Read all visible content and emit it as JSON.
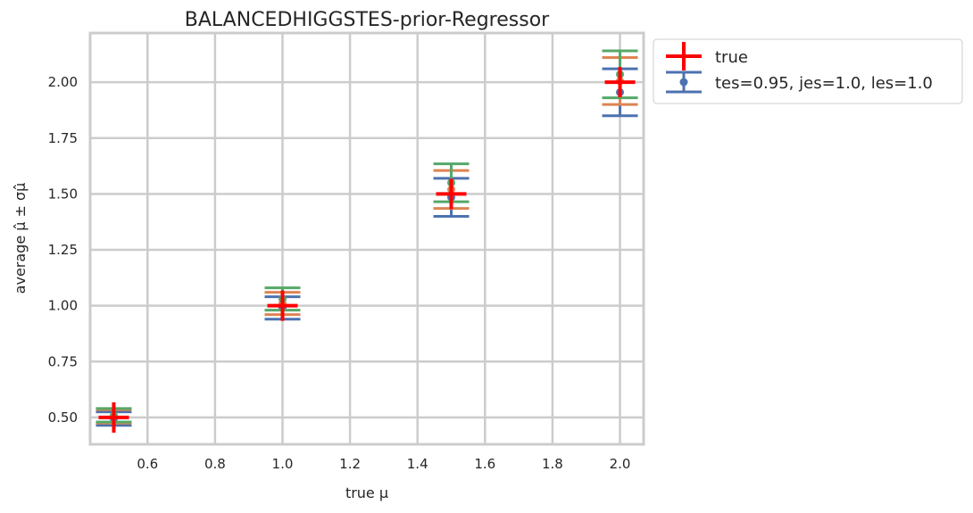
{
  "chart_data": {
    "type": "scatter",
    "title": "BALANCEDHIGGSTES-prior-Regressor",
    "xlabel": "true μ",
    "ylabel": "average μ̂ ± σμ̂",
    "xlim": [
      0.43,
      2.07
    ],
    "ylim": [
      0.38,
      2.22
    ],
    "xticks": [
      "0.6",
      "0.8",
      "1.0",
      "1.2",
      "1.4",
      "1.6",
      "1.8",
      "2.0"
    ],
    "yticks": [
      "0.50",
      "0.75",
      "1.00",
      "1.25",
      "1.50",
      "1.75",
      "2.00"
    ],
    "grid": true,
    "legend_position": "outside top-right",
    "colors": {
      "true": "#ff0000",
      "blue": "#4c72b0",
      "orange": "#dd8452",
      "green": "#55a868",
      "grid": "#cccccc",
      "axis": "#cccccc"
    },
    "true_series": {
      "name": "true",
      "x": [
        0.5,
        1.0,
        1.5,
        2.0
      ],
      "y": [
        0.5,
        1.0,
        1.5,
        2.0
      ]
    },
    "series": [
      {
        "name": "tes=0.95, jes=1.0, les=1.0",
        "color": "#4c72b0",
        "x": [
          0.5,
          1.0,
          1.5,
          2.0
        ],
        "y": [
          0.495,
          0.99,
          1.485,
          1.955
        ],
        "yerr": [
          0.03,
          0.05,
          0.085,
          0.105
        ]
      },
      {
        "color": "#dd8452",
        "x": [
          0.5,
          1.0,
          1.5,
          2.0
        ],
        "y": [
          0.505,
          1.01,
          1.52,
          2.005
        ],
        "yerr": [
          0.03,
          0.05,
          0.085,
          0.105
        ]
      },
      {
        "color": "#55a868",
        "x": [
          0.5,
          1.0,
          1.5,
          2.0
        ],
        "y": [
          0.51,
          1.03,
          1.55,
          2.035
        ],
        "yerr": [
          0.03,
          0.05,
          0.085,
          0.105
        ]
      }
    ]
  }
}
